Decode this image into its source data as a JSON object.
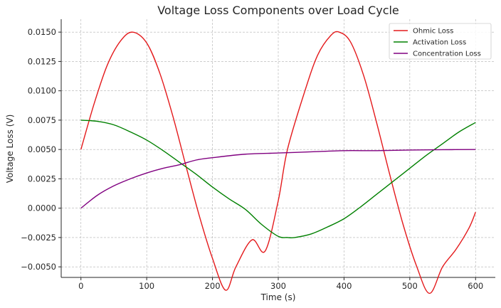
{
  "chart_data": {
    "type": "line",
    "title": "Voltage Loss Components over Load Cycle",
    "xlabel": "Time (s)",
    "ylabel": "Voltage Loss (V)",
    "xlim": [
      -30,
      630
    ],
    "ylim": [
      -0.0059,
      0.0161
    ],
    "xticks": [
      0,
      100,
      200,
      300,
      400,
      500,
      600
    ],
    "yticks": [
      -0.005,
      -0.0025,
      0,
      0.0025,
      0.005,
      0.0075,
      0.01,
      0.0125,
      0.015
    ],
    "xtick_labels": [
      "0",
      "100",
      "200",
      "300",
      "400",
      "500",
      "600"
    ],
    "ytick_labels": [
      "−0.0050",
      "−0.0025",
      "0.0000",
      "0.0025",
      "0.0050",
      "0.0075",
      "0.0100",
      "0.0125",
      "0.0150"
    ],
    "grid": true,
    "legend_position": "top-right",
    "series": [
      {
        "name": "Ohmic Loss",
        "color": "#e41a1c",
        "x": [
          0,
          20,
          40,
          60,
          78.5,
          100,
          120,
          140,
          160,
          180,
          200,
          220,
          235.6,
          260,
          280,
          300,
          314,
          340,
          360,
          380,
          392.7,
          410,
          430,
          450,
          470,
          490,
          510,
          530,
          549.8,
          570,
          590,
          600
        ],
        "y": [
          0.005,
          0.00889,
          0.01218,
          0.01423,
          0.015,
          0.01408,
          0.01149,
          0.00779,
          0.00352,
          -0.00066,
          -0.00428,
          -0.00699,
          -0.005,
          -0.0027,
          -0.00366,
          0.00064,
          0.005,
          0.0099,
          0.01305,
          0.01472,
          0.015,
          0.01415,
          0.01127,
          0.00719,
          0.00276,
          -0.00143,
          -0.00489,
          -0.00726,
          -0.005,
          -0.00353,
          -0.00169,
          -0.00034
        ]
      },
      {
        "name": "Activation Loss",
        "color": "#008000",
        "x": [
          0,
          25,
          50,
          75,
          100,
          125,
          150,
          175,
          200,
          225,
          250,
          275,
          300,
          314.2,
          325,
          350,
          375,
          400,
          425,
          450,
          475,
          500,
          525,
          550,
          575,
          600
        ],
        "y": [
          0.0075,
          0.0074,
          0.0071,
          0.0065,
          0.0058,
          0.0049,
          0.0039,
          0.0029,
          0.0018,
          0.0008,
          -0.0001,
          -0.0014,
          -0.0024,
          -0.0025,
          -0.0025,
          -0.0022,
          -0.0016,
          -0.0009,
          0.0001,
          0.0012,
          0.0023,
          0.0034,
          0.0045,
          0.0055,
          0.0065,
          0.0073
        ]
      },
      {
        "name": "Concentration Loss",
        "color": "#800080",
        "x": [
          0,
          25,
          50,
          75,
          100,
          125,
          150,
          175,
          200,
          250,
          300,
          350,
          400,
          450,
          500,
          550,
          600
        ],
        "y": [
          0.0,
          0.0011,
          0.0019,
          0.0025,
          0.003,
          0.0034,
          0.0037,
          0.0041,
          0.0043,
          0.0046,
          0.0047,
          0.0048,
          0.0049,
          0.0049,
          0.00495,
          0.00498,
          0.005
        ]
      }
    ]
  }
}
